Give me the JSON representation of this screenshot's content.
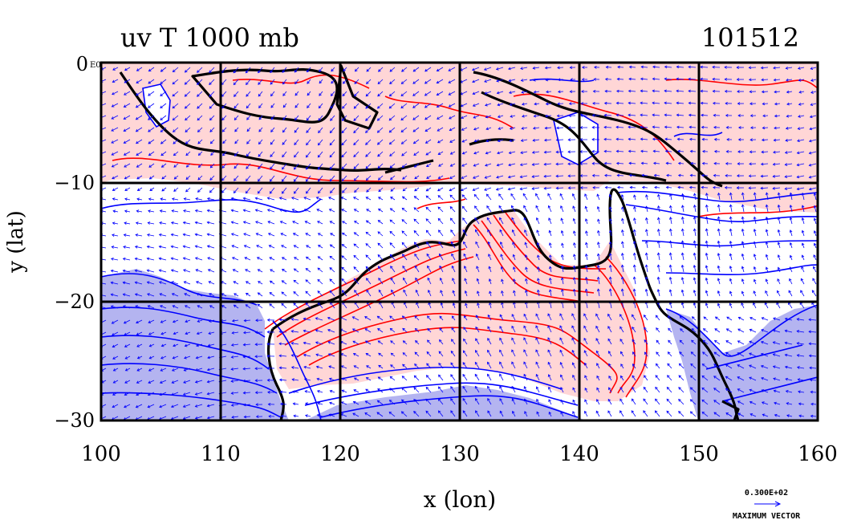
{
  "title": "uv T 1000 mb",
  "timestamp": "101512",
  "xaxis": {
    "label": "x (lon)",
    "ticks": [
      "100",
      "110",
      "120",
      "130",
      "140",
      "150",
      "160"
    ],
    "range": [
      100,
      160
    ]
  },
  "yaxis": {
    "label": "y (lat)",
    "ticks": [
      "0",
      "−10",
      "−20",
      "−30"
    ],
    "range": [
      -30,
      0
    ]
  },
  "corner_exponent": "E0",
  "vector_legend": {
    "value": "0.300E+02",
    "caption": "MAXIMUM VECTOR"
  },
  "colors": {
    "warm_fill": "#ffd6d6",
    "cold_fill": "#b4b4f0",
    "warm_contour": "#ff0000",
    "cold_contour": "#0000ff",
    "coast": "#000000",
    "grid": "#000000",
    "vector": "#0000ff"
  }
}
